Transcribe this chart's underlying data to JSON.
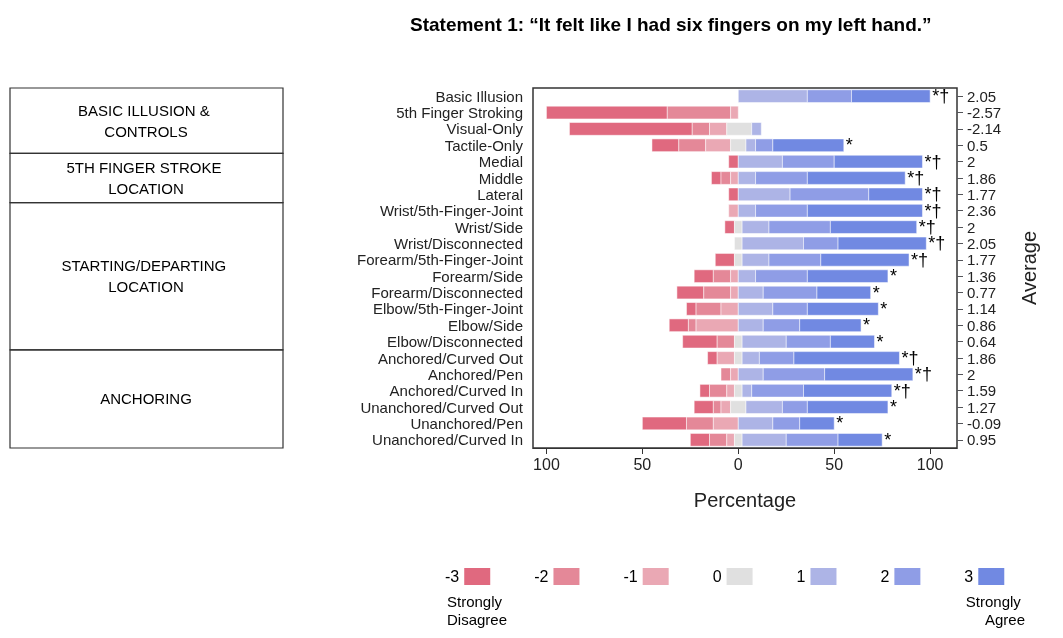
{
  "chart_data": {
    "type": "bar",
    "orientation": "horizontal",
    "title": "Statement 1: “It felt like I had six fingers on my left hand.”",
    "xlabel": "Percentage",
    "y2label": "Average",
    "categories": [
      "Basic Illusion",
      "5th Finger Stroking",
      "Visual-Only",
      "Tactile-Only",
      "Medial",
      "Middle",
      "Lateral",
      "Wrist/5th-Finger-Joint",
      "Wrist/Side",
      "Wrist/Disconnected",
      "Forearm/5th-Finger-Joint",
      "Forearm/Side",
      "Forearm/Disconnected",
      "Elbow/5th-Finger-Joint",
      "Elbow/Side",
      "Elbow/Disconnected",
      "Anchored/Curved Out",
      "Anchored/Pen",
      "Anchored/Curved In",
      "Unanchored/Curved Out",
      "Unanchored/Pen",
      "Unanchored/Curved In"
    ],
    "y2_categories": [
      "2.05",
      "-2.57",
      "-2.14",
      "0.5",
      "2",
      "1.86",
      "1.77",
      "2.36",
      "2",
      "2.05",
      "1.77",
      "1.36",
      "0.77",
      "1.14",
      "0.86",
      "0.64",
      "1.86",
      "2",
      "1.59",
      "1.27",
      "-0.09",
      "0.95"
    ],
    "xlim": [
      -107,
      114
    ],
    "xticks": [
      {
        "value": -100,
        "label": "100"
      },
      {
        "value": -50,
        "label": "50"
      },
      0,
      50,
      100
    ],
    "grid": false,
    "legend": "bottom",
    "series": [
      {
        "name": "-3",
        "color": "#e0697f",
        "base": [
          null,
          -37,
          -24,
          -31,
          0,
          -9,
          0,
          null,
          -2,
          null,
          -2,
          -13,
          -18,
          -22,
          -26,
          -11,
          -11,
          null,
          -15,
          -13,
          -27,
          -15
        ],
        "values": [
          null,
          -63,
          -64,
          -14,
          -5,
          -5,
          -5,
          null,
          -5,
          null,
          -10,
          -10,
          -14,
          -5,
          -10,
          -18,
          -5,
          null,
          -5,
          -10,
          -23,
          -10
        ]
      },
      {
        "name": "-2",
        "color": "#e48898",
        "base": [
          null,
          -4,
          -15,
          -17,
          null,
          -4,
          null,
          null,
          null,
          null,
          null,
          -4,
          -4,
          -9,
          -22,
          -2,
          null,
          -4,
          -6,
          -9,
          -13,
          -6
        ],
        "values": [
          null,
          -33,
          -9,
          -14,
          null,
          -5,
          null,
          null,
          null,
          null,
          null,
          -9,
          -14,
          -13,
          -4,
          -9,
          null,
          -5,
          -9,
          -4,
          -14,
          -9
        ]
      },
      {
        "name": "-1",
        "color": "#eaa8b4",
        "base": [
          null,
          0,
          -6,
          -4,
          null,
          0,
          null,
          0,
          null,
          null,
          null,
          0,
          0,
          0,
          0,
          null,
          -2,
          0,
          -2,
          -4,
          0,
          -2
        ],
        "values": [
          null,
          -4,
          -9,
          -13,
          null,
          -4,
          null,
          -5,
          null,
          null,
          null,
          -4,
          -4,
          -9,
          -22,
          null,
          -9,
          -4,
          -4,
          -5,
          -13,
          -4
        ]
      },
      {
        "name": "0",
        "color": "#e0e0e0",
        "base": [
          null,
          null,
          -6,
          -4,
          null,
          null,
          null,
          null,
          -2,
          -2,
          -2,
          null,
          null,
          null,
          null,
          -2,
          -2,
          null,
          -2,
          -4,
          null,
          -2
        ],
        "values": [
          null,
          null,
          13,
          8,
          null,
          null,
          null,
          null,
          4,
          4,
          4,
          null,
          null,
          null,
          null,
          4,
          4,
          null,
          4,
          8,
          null,
          4
        ]
      },
      {
        "name": "1",
        "color": "#adb4e6",
        "base": [
          0,
          null,
          7,
          4,
          0,
          0,
          0,
          0,
          2,
          2,
          2,
          0,
          0,
          0,
          0,
          2,
          2,
          0,
          2,
          4,
          0,
          2
        ],
        "values": [
          36,
          null,
          5,
          5,
          23,
          9,
          27,
          9,
          14,
          32,
          14,
          9,
          13,
          18,
          13,
          23,
          9,
          13,
          5,
          19,
          18,
          23
        ]
      },
      {
        "name": "2",
        "color": "#8f9de6",
        "base": [
          36,
          null,
          null,
          9,
          23,
          9,
          27,
          9,
          16,
          34,
          16,
          9,
          13,
          18,
          13,
          25,
          11,
          13,
          7,
          23,
          18,
          25
        ],
        "values": [
          23,
          null,
          null,
          9,
          27,
          27,
          41,
          27,
          32,
          18,
          27,
          27,
          28,
          18,
          19,
          23,
          18,
          32,
          27,
          13,
          14,
          27
        ]
      },
      {
        "name": "3",
        "color": "#7189e2",
        "base": [
          59,
          null,
          null,
          18,
          50,
          36,
          68,
          36,
          48,
          52,
          43,
          36,
          41,
          36,
          32,
          48,
          29,
          45,
          34,
          36,
          32,
          52
        ],
        "values": [
          41,
          null,
          null,
          37,
          46,
          51,
          28,
          60,
          45,
          46,
          46,
          42,
          28,
          37,
          32,
          23,
          55,
          46,
          46,
          42,
          18,
          23
        ]
      }
    ],
    "annotations": [
      "BASIC ILLUSION & CONTROLS",
      "5TH FINGER STROKE LOCATION",
      "STARTING/DEPARTING LOCATION",
      "ANCHORING",
      {
        "text": "*†",
        "x": 100,
        "y": "Basic Illusion"
      },
      {
        "text": "*",
        "x": 55,
        "y": "Tactile-Only"
      },
      {
        "text": "*†",
        "x": 96,
        "y": "Medial"
      },
      {
        "text": "*†",
        "x": 87,
        "y": "Middle"
      },
      {
        "text": "*†",
        "x": 96,
        "y": "Lateral"
      },
      {
        "text": "*†",
        "x": 96,
        "y": "Wrist/5th-Finger-Joint"
      },
      {
        "text": "*†",
        "x": 93,
        "y": "Wrist/Side"
      },
      {
        "text": "*†",
        "x": 98,
        "y": "Wrist/Disconnected"
      },
      {
        "text": "*†",
        "x": 89,
        "y": "Forearm/5th-Finger-Joint"
      },
      {
        "text": "*",
        "x": 78,
        "y": "Forearm/Side"
      },
      {
        "text": "*",
        "x": 69,
        "y": "Forearm/Disconnected"
      },
      {
        "text": "*",
        "x": 73,
        "y": "Elbow/5th-Finger-Joint"
      },
      {
        "text": "*",
        "x": 64,
        "y": "Elbow/Side"
      },
      {
        "text": "*",
        "x": 71,
        "y": "Elbow/Disconnected"
      },
      {
        "text": "*†",
        "x": 84,
        "y": "Anchored/Curved Out"
      },
      {
        "text": "*†",
        "x": 91,
        "y": "Anchored/Pen"
      },
      {
        "text": "*†",
        "x": 80,
        "y": "Anchored/Curved In"
      },
      {
        "text": "*",
        "x": 78,
        "y": "Unanchored/Curved Out"
      },
      {
        "text": "*",
        "x": 50,
        "y": "Unanchored/Pen"
      },
      {
        "text": "*",
        "x": 75,
        "y": "Unanchored/Curved In"
      },
      "Strongly Disagree",
      "Strongly Agree"
    ]
  }
}
